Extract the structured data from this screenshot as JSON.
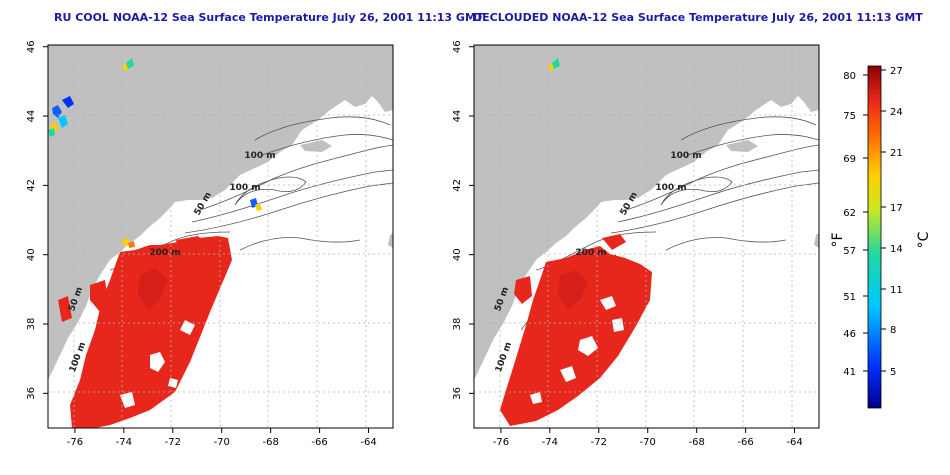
{
  "maps": [
    {
      "title": "RU COOL NOAA-12 Sea Surface Temperature July 26, 2001 11:13 GMT",
      "x_ticks": [
        "-76",
        "-74",
        "-72",
        "-70",
        "-68",
        "-66",
        "-64"
      ],
      "y_ticks": [
        "36",
        "38",
        "40",
        "42",
        "44",
        "46"
      ],
      "contour_labels": [
        "100 m",
        "100 m",
        "50 m",
        "200 m",
        "50 m",
        "100 m"
      ]
    },
    {
      "title": "DECLOUDED NOAA-12 Sea Surface Temperature July 26, 2001 11:13 GMT",
      "x_ticks": [
        "-76",
        "-74",
        "-72",
        "-70",
        "-68",
        "-66",
        "-64"
      ],
      "y_ticks": [
        "36",
        "38",
        "40",
        "42",
        "44",
        "46"
      ],
      "contour_labels": [
        "100 m",
        "100 m",
        "50 m",
        "200 m",
        "50 m",
        "100 m"
      ]
    }
  ],
  "colorbar": {
    "fahrenheit_unit": "°F",
    "celsius_unit": "°C",
    "fahrenheit_ticks": [
      "80",
      "75",
      "69",
      "62",
      "57",
      "51",
      "46",
      "41"
    ],
    "celsius_ticks": [
      "27",
      "24",
      "21",
      "17",
      "14",
      "11",
      "8",
      "5"
    ]
  },
  "colors": {
    "land": "#c0c0c0",
    "warm_water": "#e8271c",
    "title": "#1a1aa6"
  }
}
